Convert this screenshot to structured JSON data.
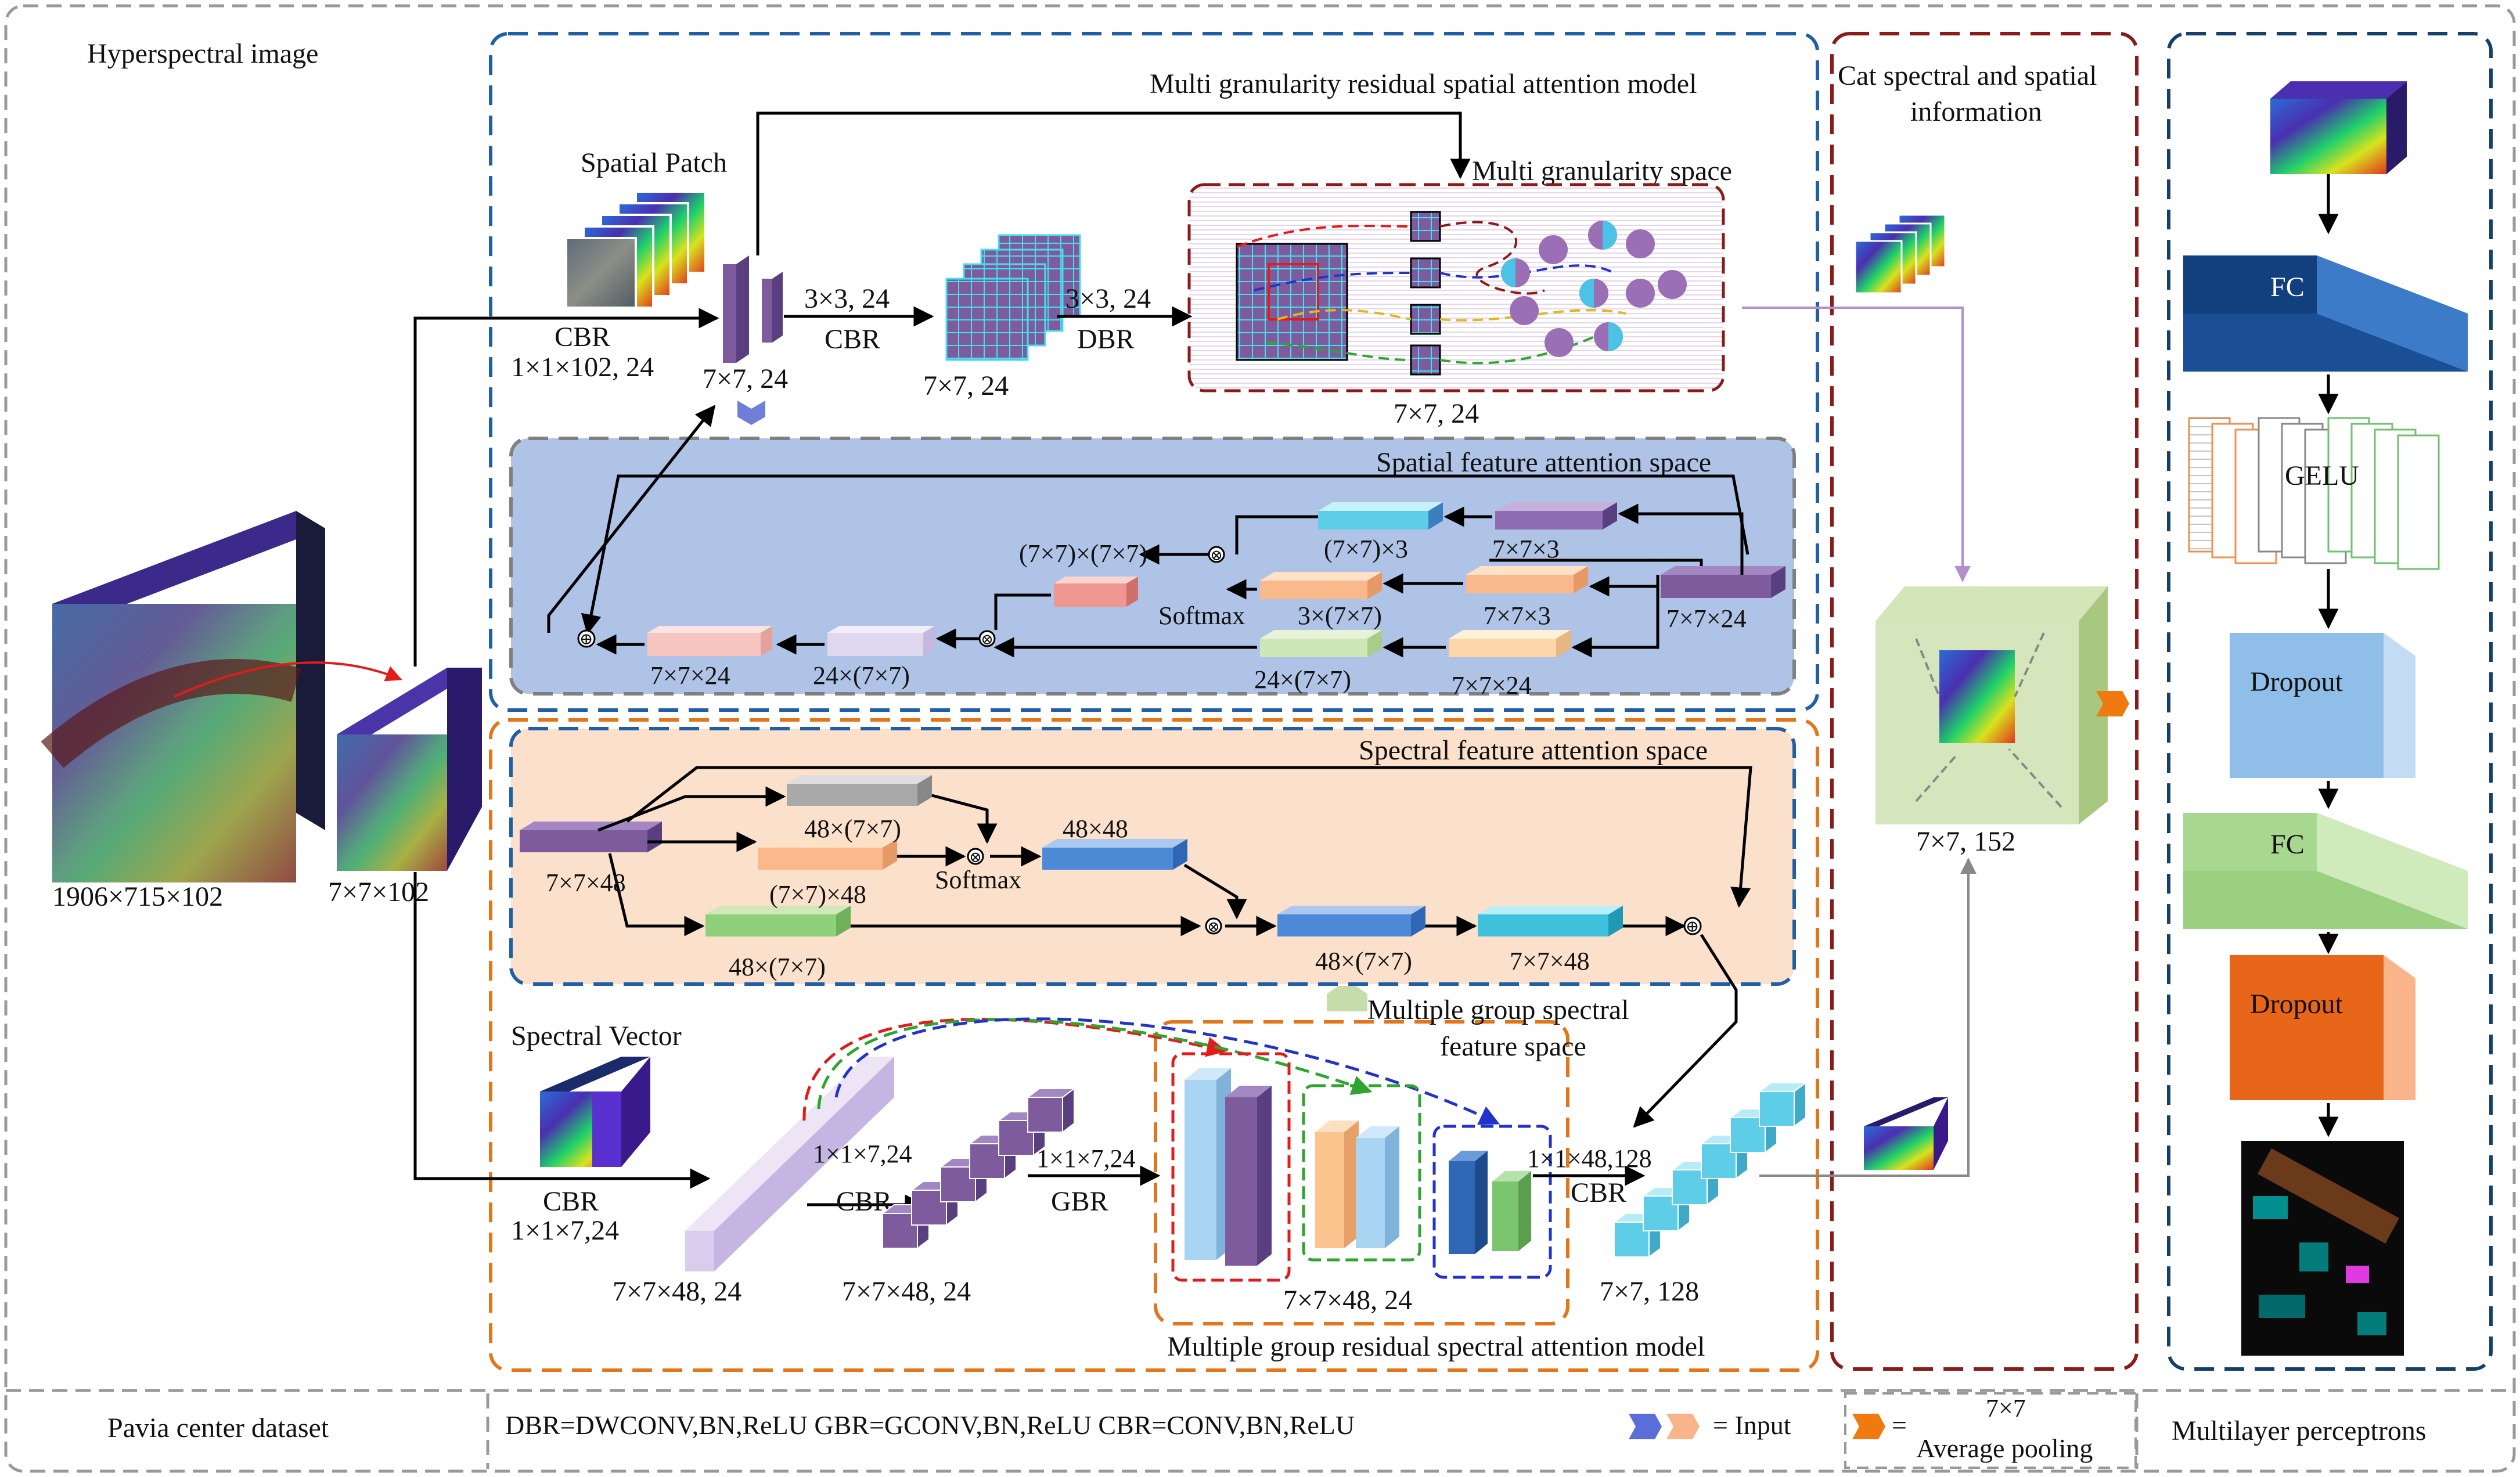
{
  "sections": {
    "hyperspectral": "Hyperspectral image",
    "mgrsam": "Multi granularity residual spatial attention model",
    "cat": "Cat spectral and spatial information",
    "mlp_title": "Multilayer perceptrons",
    "mgrspam": "Multiple group residual spectral attention model",
    "spatial_fa": "Spatial feature attention space",
    "spectral_fa": "Spectral feature attention space",
    "mg_space": "Multi granularity space",
    "mg_spectral": "Multiple group spectral feature space"
  },
  "labels": {
    "input_size": "1906×715×102",
    "patch_size": "7×7×102",
    "spatial_patch": "Spatial Patch",
    "spectral_vector": "Spectral Vector",
    "cbr": "CBR",
    "dbr": "DBR",
    "gbr": "GBR",
    "softmax": "Softmax",
    "k_1x1x102": "1×1×102, 24",
    "s_7x7_24": "7×7, 24",
    "k_3x3_24": "3×3, 24",
    "k_1x1x7": "1×1×7,24",
    "k_1x1x7b": "1×1×7,24",
    "k_1x1x48": "1×1×48,128",
    "s_7x7x48_24": "7×7×48, 24",
    "s_7x7_128": "7×7, 128",
    "s_7x7_152": "7×7, 152",
    "s_7x7x3": "7×7×3",
    "s_7x7x24": "7×7×24",
    "s_7x7x48": "7×7×48",
    "s_49x3": "(7×7)×3",
    "s_3x49": "3×(7×7)",
    "s_49x49": "(7×7)×(7×7)",
    "s_24x49": "24×(7×7)",
    "s_48x49": "48×(7×7)",
    "s_49x48": "(7×7)×48",
    "s_48x48": "48×48"
  },
  "mlp": {
    "fc": "FC",
    "gelu": "GELU",
    "dropout": "Dropout"
  },
  "legend": {
    "dataset": "Pavia center dataset",
    "defs": "DBR=DWCONV,BN,ReLU  GBR=GCONV,BN,ReLU  CBR=CONV,BN,ReLU",
    "input": "= Input",
    "eq": "=",
    "pool_size": "7×7",
    "pool": "Average pooling"
  },
  "colors": {
    "blue_dash": "#1f5fa8",
    "orange_dash": "#e2761a",
    "red_dash": "#8b1a1a",
    "navy_dash": "#15406b",
    "spatial_fill": "#aec3e5",
    "spectral_fill": "#fbe0cc",
    "cat_fill": "#eef5de",
    "purple": "#7d5b9c"
  }
}
